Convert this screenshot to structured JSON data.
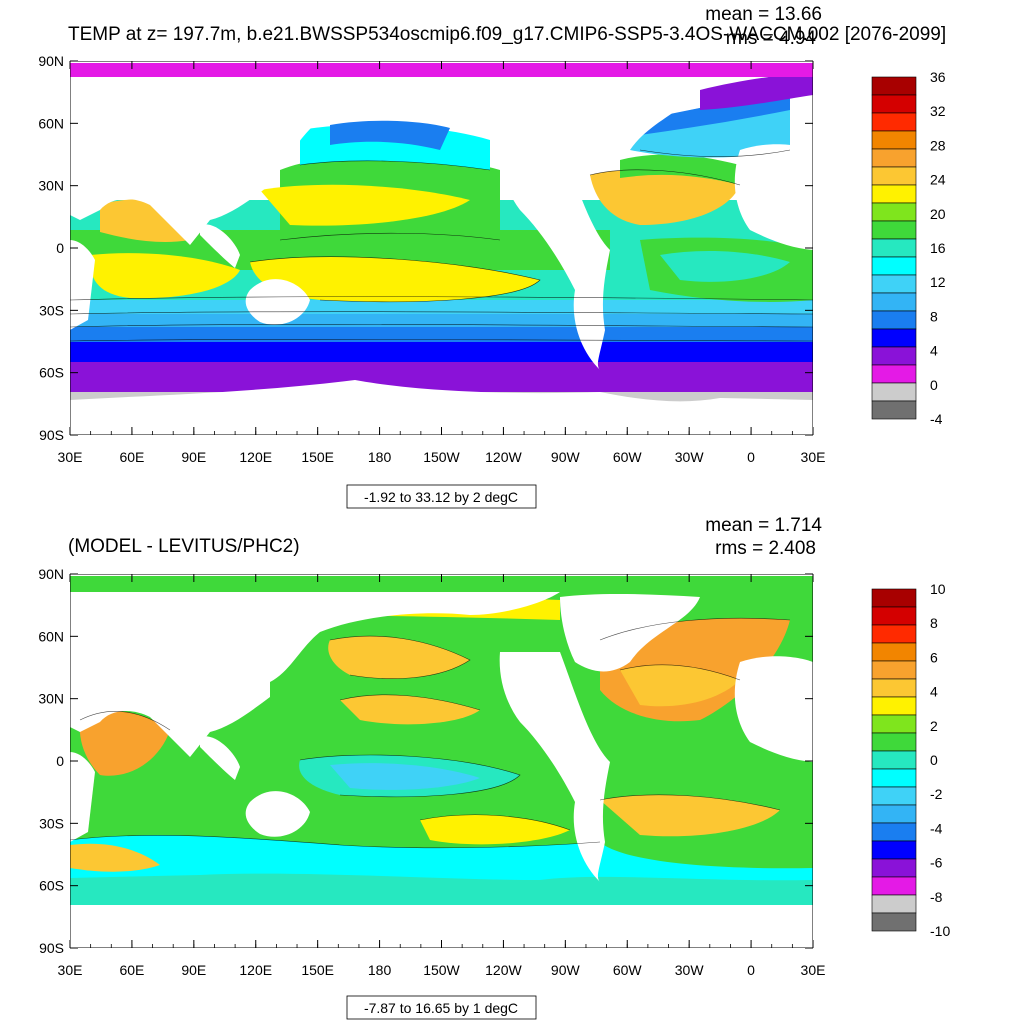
{
  "top": {
    "title": "TEMP at z= 197.7m, b.e21.BWSSP534oscmip6.f09_g17.CMIP6-SSP5-3.4OS-WACCM.002 [2076-2099]",
    "mean_text": "mean = 13.66",
    "rms_text": "rms = 4.94",
    "range_text": "-1.92 to 33.12 by 2 degC",
    "colorbar_labels": [
      "36",
      "32",
      "28",
      "24",
      "20",
      "16",
      "12",
      "8",
      "4",
      "0",
      "-4"
    ]
  },
  "bottom": {
    "title": "(MODEL - LEVITUS/PHC2)",
    "mean_text": "mean = 1.714",
    "rms_text": "rms = 2.408",
    "range_text": "-7.87 to 16.65 by 1 degC",
    "colorbar_labels": [
      "10",
      "8",
      "6",
      "4",
      "2",
      "0",
      "-2",
      "-4",
      "-6",
      "-8",
      "-10"
    ]
  },
  "lat_labels": [
    "90N",
    "60N",
    "30N",
    "0",
    "30S",
    "60S",
    "90S"
  ],
  "lon_labels": [
    "30E",
    "60E",
    "90E",
    "120E",
    "150E",
    "180",
    "150W",
    "120W",
    "90W",
    "60W",
    "30W",
    "0",
    "30E"
  ],
  "colors": {
    "top_colorbar": [
      "#a80000",
      "#d40000",
      "#ff2a00",
      "#f28500",
      "#f8a22e",
      "#fcc733",
      "#fff200",
      "#7fe51d",
      "#3fd93a",
      "#26e8c0",
      "#00ffff",
      "#3fd2f7",
      "#33b4f5",
      "#1a7ef0",
      "#0000ff",
      "#8a12d8",
      "#e41ae6",
      "#cccccc",
      "#707070"
    ],
    "bottom_colorbar": [
      "#a80000",
      "#d40000",
      "#ff2a00",
      "#f28500",
      "#f8a22e",
      "#fcc733",
      "#fff200",
      "#7fe51d",
      "#3fd93a",
      "#26e8c0",
      "#00ffff",
      "#3fd2f7",
      "#33b4f5",
      "#1a7ef0",
      "#0000ff",
      "#8a12d8",
      "#e41ae6",
      "#cccccc",
      "#707070"
    ]
  }
}
